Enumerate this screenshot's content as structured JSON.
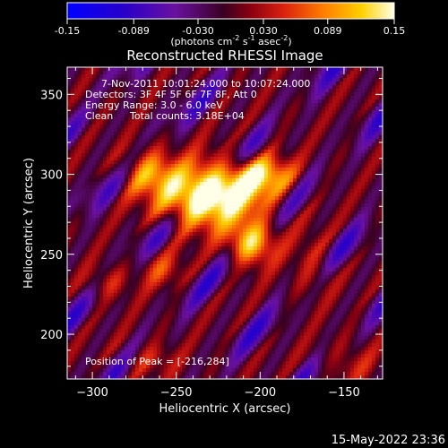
{
  "chart_data": {
    "type": "heatmap",
    "title": "Reconstructed RHESSI Image",
    "xlabel": "Heliocentric X (arcsec)",
    "ylabel": "Heliocentric Y (arcsec)",
    "xlim": [
      -315,
      -127
    ],
    "ylim": [
      172,
      367
    ],
    "x_ticks": [
      -300,
      -250,
      -200,
      -150
    ],
    "y_ticks": [
      200,
      250,
      300,
      350
    ],
    "colorbar": {
      "min": -0.15,
      "max": 0.15,
      "ticks": [
        "-0.15",
        "-0.089",
        "-0.030",
        "0.030",
        "0.089",
        "0.15"
      ],
      "label_text": "(photons cm",
      "label_exp1": "-2",
      "label_mid": " s",
      "label_exp2": "-1",
      "label_mid2": " asec",
      "label_exp3": "-2",
      "label_end": ")"
    },
    "annotations": [
      "7-Nov-2011 10:01:24.000 to 10:07:24.000",
      "Detectors: 3F 4F 5F 6F 7F 8F, Att 0",
      "Energy Range: 3.0 - 6.0 keV",
      "Clean",
      "Total counts: 3.18E+04"
    ],
    "peak_label": "Position of Peak = [-216,284]",
    "peak": {
      "x": -216,
      "y": 284,
      "value": 0.15
    },
    "sources": [
      {
        "x": -222,
        "y": 290,
        "value": 0.15,
        "sx": 22,
        "sy": 14
      },
      {
        "x": -205,
        "y": 257,
        "value": 0.12,
        "sx": 10,
        "sy": 10
      },
      {
        "x": -240,
        "y": 280,
        "value": 0.07,
        "sx": 16,
        "sy": 12
      },
      {
        "x": -266,
        "y": 300,
        "value": 0.09,
        "sx": 12,
        "sy": 10
      },
      {
        "x": -258,
        "y": 240,
        "value": 0.05,
        "sx": 10,
        "sy": 8
      },
      {
        "x": -290,
        "y": 232,
        "value": 0.04,
        "sx": 10,
        "sy": 8
      },
      {
        "x": -168,
        "y": 244,
        "value": 0.04,
        "sx": 9,
        "sy": 14
      },
      {
        "x": -268,
        "y": 185,
        "value": 0.05,
        "sx": 12,
        "sy": 8
      },
      {
        "x": -150,
        "y": 182,
        "value": 0.04,
        "sx": 14,
        "sy": 10
      },
      {
        "x": -197,
        "y": 300,
        "value": 0.08,
        "sx": 12,
        "sy": 8
      }
    ]
  },
  "footer_date": "15-May-2022 23:36"
}
